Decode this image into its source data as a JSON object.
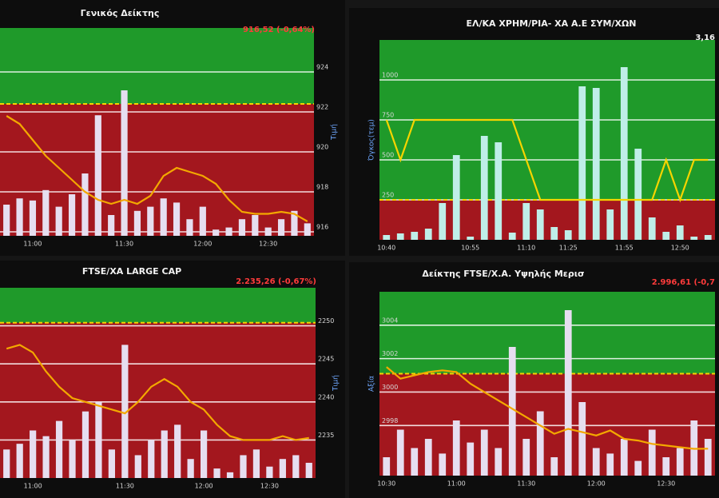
{
  "chart_data": [
    {
      "type": "combo",
      "title": "Γενικός Δείκτης",
      "subtitle": "916,52 (-0,64%)",
      "subtitle_color": "#ff3b3b",
      "ylabel": "Τιμή",
      "categories": [
        null,
        null,
        "11:00",
        null,
        null,
        null,
        null,
        null,
        null,
        "11:30",
        null,
        null,
        null,
        null,
        null,
        "12:00",
        null,
        null,
        null,
        null,
        "12:30",
        null,
        null,
        null
      ],
      "ylim": [
        915.8,
        926.2
      ],
      "yticks": [
        916,
        918,
        920,
        922,
        924
      ],
      "y2lim": [
        0,
        100
      ],
      "reference_line": 922.4,
      "upper_color": "#1f9a2a",
      "lower_color": "#a3171e",
      "grid": true,
      "series": [
        {
          "type": "bar",
          "axis": "y2",
          "color": "#e6def0",
          "values": [
            15,
            18,
            17,
            22,
            14,
            20,
            30,
            58,
            10,
            70,
            12,
            14,
            18,
            16,
            8,
            14,
            3,
            4,
            8,
            10,
            4,
            8,
            12,
            6
          ]
        },
        {
          "type": "line",
          "color": "#f3a800",
          "values": [
            921.8,
            921.4,
            920.6,
            919.8,
            919.2,
            918.6,
            918.0,
            917.6,
            917.4,
            917.6,
            917.4,
            917.8,
            918.8,
            919.2,
            919.0,
            918.8,
            918.4,
            917.6,
            917.0,
            916.9,
            916.9,
            917.0,
            916.9,
            916.52
          ]
        }
      ]
    },
    {
      "type": "combo",
      "title": "ΕΛ/ΚΑ ΧΡΗΜ/ΡΙΑ- ΧΑ Α.Ε ΣΥΜ/ΧΩΝ",
      "subtitle": "3,16",
      "subtitle_color": "#f2f2f2",
      "ylabel": "Όγκος(τεμ)",
      "categories": [
        "10:40",
        null,
        null,
        null,
        null,
        null,
        "10:55",
        null,
        null,
        null,
        "11:10",
        null,
        null,
        "11:25",
        null,
        null,
        null,
        "11:55",
        null,
        null,
        null,
        "12:50",
        null,
        null
      ],
      "ylim": [
        0,
        1250
      ],
      "yticks": [
        250,
        500,
        750,
        1000
      ],
      "reference_line": 250,
      "upper_color": "#1f9a2a",
      "lower_color": "#a3171e",
      "grid": true,
      "series": [
        {
          "type": "bar",
          "color": "#bfeee8",
          "values": [
            30,
            40,
            50,
            70,
            230,
            530,
            20,
            650,
            610,
            45,
            230,
            190,
            80,
            60,
            960,
            950,
            190,
            1080,
            570,
            140,
            50,
            90,
            20,
            30
          ]
        },
        {
          "type": "line",
          "color": "#f5d400",
          "values": [
            750,
            500,
            750,
            750,
            750,
            750,
            750,
            750,
            750,
            750,
            500,
            250,
            250,
            250,
            250,
            250,
            250,
            250,
            250,
            250,
            500,
            250,
            500,
            500
          ]
        }
      ]
    },
    {
      "type": "combo",
      "title": "FTSE/XA LARGE CAP",
      "subtitle": "2.235,26 (-0,67%)",
      "subtitle_color": "#ff3b3b",
      "ylabel": "Τιμή",
      "categories": [
        null,
        null,
        "11:00",
        null,
        null,
        null,
        null,
        null,
        null,
        "11:30",
        null,
        null,
        null,
        null,
        null,
        "12:00",
        null,
        null,
        null,
        null,
        "12:30",
        null,
        null,
        null
      ],
      "ylim": [
        2230,
        2255
      ],
      "yticks": [
        2235,
        2240,
        2245,
        2250
      ],
      "y2lim": [
        0,
        100
      ],
      "reference_line": 2250.4,
      "upper_color": "#1f9a2a",
      "lower_color": "#a3171e",
      "grid": true,
      "series": [
        {
          "type": "bar",
          "axis": "y2",
          "color": "#e6def0",
          "values": [
            15,
            18,
            25,
            22,
            30,
            20,
            35,
            40,
            15,
            70,
            12,
            20,
            25,
            28,
            10,
            25,
            5,
            3,
            12,
            15,
            6,
            10,
            12,
            8
          ]
        },
        {
          "type": "line",
          "color": "#f3a800",
          "values": [
            2247,
            2247.5,
            2246.5,
            2244,
            2242,
            2240.5,
            2240,
            2239.5,
            2239,
            2238.5,
            2240,
            2242,
            2243,
            2242,
            2240,
            2239,
            2237,
            2235.5,
            2235,
            2235,
            2235,
            2235.5,
            2235,
            2235.26
          ]
        }
      ]
    },
    {
      "type": "combo",
      "title": "Δείκτης FTSE/X.A. Υψηλής Μερισ",
      "subtitle": "2.996,61 (-0,7",
      "subtitle_color": "#ff3b3b",
      "ylabel": "Αξία",
      "categories": [
        "10:30",
        null,
        null,
        null,
        null,
        "11:00",
        null,
        null,
        null,
        null,
        "11:30",
        null,
        null,
        null,
        null,
        "12:00",
        null,
        null,
        null,
        null,
        "12:30",
        null,
        null,
        null
      ],
      "ylim": [
        2995,
        3006
      ],
      "yticks": [
        2998,
        3000,
        3002,
        3004
      ],
      "y2lim": [
        0,
        100
      ],
      "reference_line": 3001.1,
      "upper_color": "#1f9a2a",
      "lower_color": "#a3171e",
      "grid": true,
      "series": [
        {
          "type": "bar",
          "axis": "y2",
          "color": "#e6def0",
          "values": [
            10,
            25,
            15,
            20,
            12,
            30,
            18,
            25,
            15,
            70,
            20,
            35,
            10,
            90,
            40,
            15,
            12,
            20,
            8,
            25,
            10,
            15,
            30,
            20
          ]
        },
        {
          "type": "line",
          "color": "#f3a800",
          "values": [
            3001.5,
            3000.8,
            3001,
            3001.2,
            3001.3,
            3001.2,
            3000.5,
            3000,
            2999.5,
            2999,
            2998.5,
            2998,
            2997.5,
            2997.8,
            2997.6,
            2997.4,
            2997.7,
            2997.2,
            2997.1,
            2996.9,
            2996.8,
            2996.7,
            2996.6,
            2996.61
          ]
        }
      ]
    }
  ]
}
